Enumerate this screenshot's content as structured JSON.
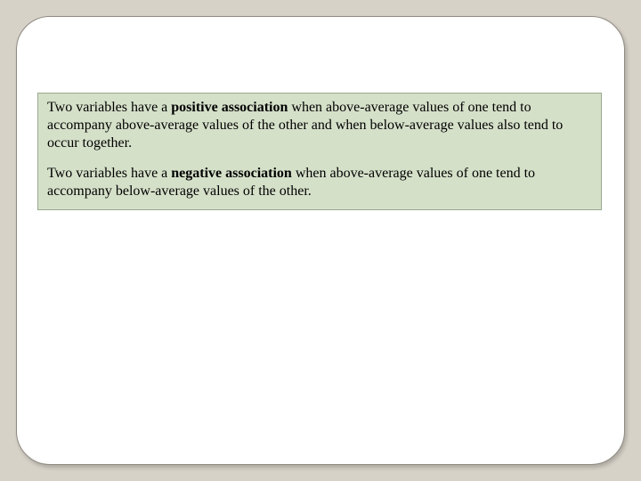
{
  "slide": {
    "background_color": "#d7d2c8",
    "card_background": "#ffffff",
    "card_border_color": "#8f8b82",
    "card_border_radius": 38,
    "box_background": "#d5e0c9",
    "box_border_color": "#9aa890",
    "font_family": "Times New Roman",
    "body_fontsize": 16,
    "text_color": "#000000"
  },
  "para1": {
    "pre": "Two variables have a ",
    "bold": "positive association",
    "post": " when above-average values of one tend to accompany above-average values of the other and when below-average values also tend to occur together."
  },
  "para2": {
    "pre": "Two variables have a ",
    "bold": "negative association",
    "post": " when above-average values of one tend to accompany below-average values of the other."
  }
}
